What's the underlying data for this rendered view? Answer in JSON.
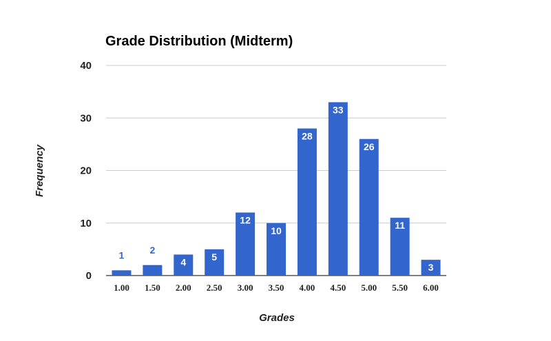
{
  "chart_data": {
    "type": "bar",
    "title": "Grade Distribution (Midterm)",
    "xlabel": "Grades",
    "ylabel": "Frequency",
    "categories": [
      "1.00",
      "1.50",
      "2.00",
      "2.50",
      "3.00",
      "3.50",
      "4.00",
      "4.50",
      "5.00",
      "5.50",
      "6.00"
    ],
    "values": [
      1,
      2,
      4,
      5,
      12,
      10,
      28,
      33,
      26,
      11,
      3
    ],
    "ylim": [
      0,
      40
    ],
    "yticks": [
      0,
      10,
      20,
      30,
      40
    ],
    "grid": true,
    "legend": "none",
    "colors": {
      "bar": "#3366cc",
      "grid": "#cccccc",
      "baseline": "#333333"
    }
  }
}
